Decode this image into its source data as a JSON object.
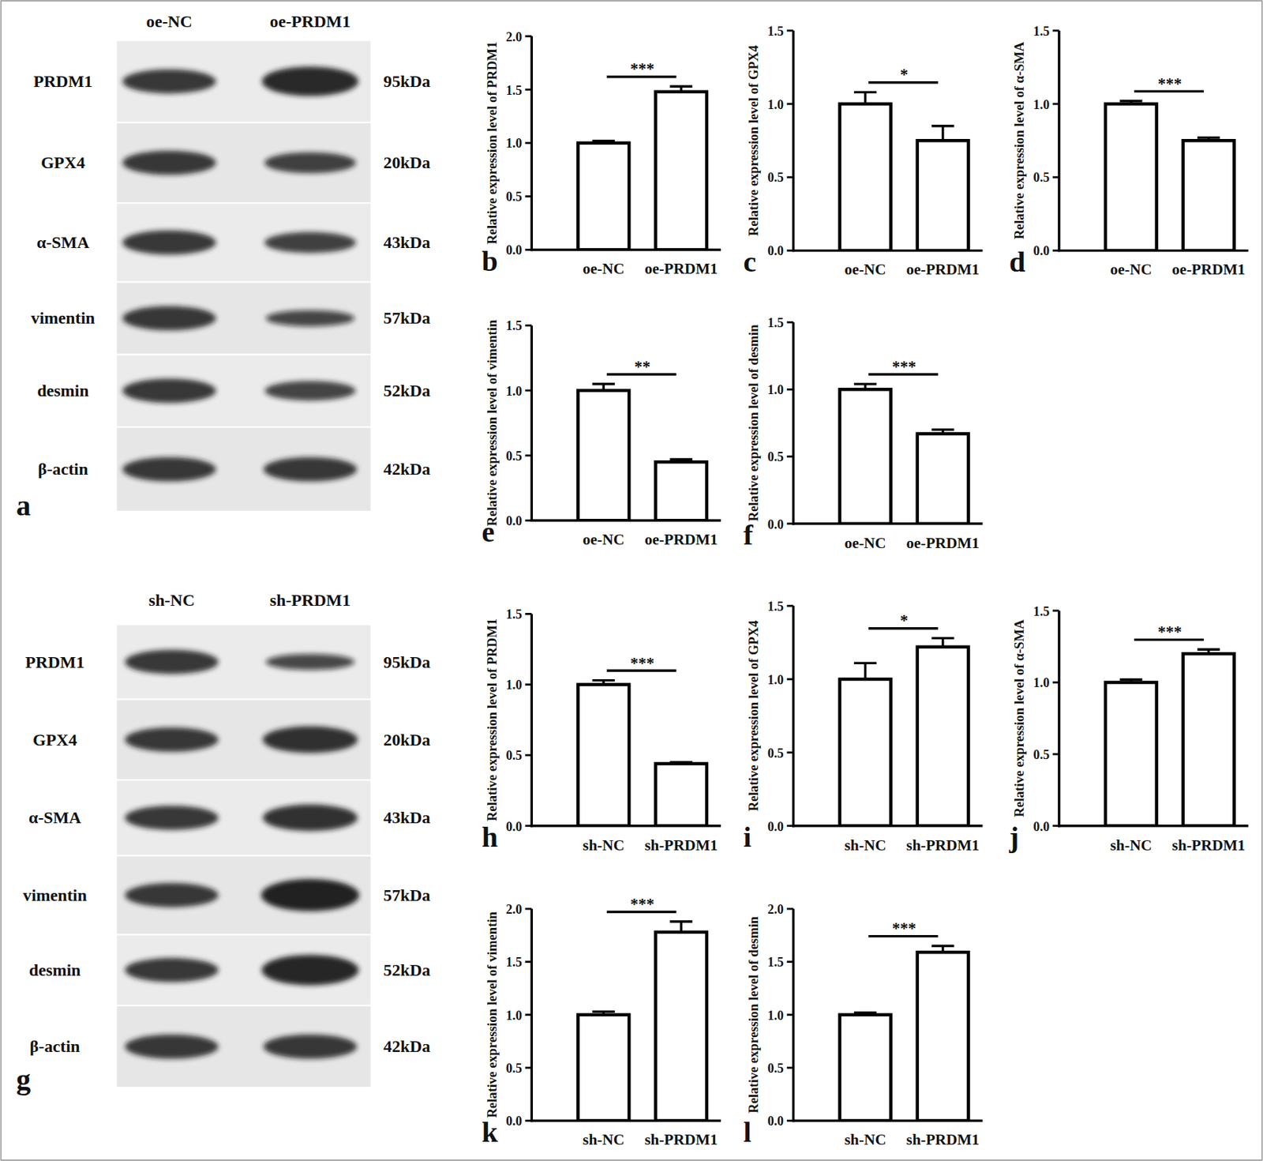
{
  "chart_data": [
    {
      "type": "bar",
      "panel": "b",
      "y_label": "Relative expression level of PRDM1",
      "categories": [
        "oe-NC",
        "oe-PRDM1"
      ],
      "values": [
        1.0,
        1.48
      ],
      "errors": [
        0.02,
        0.05
      ],
      "color": "#000000",
      "ylim": [
        0,
        2
      ],
      "yticks": [
        {
          "value": 0,
          "label": "0.0"
        },
        {
          "value": 0.5,
          "label": "0.5"
        },
        {
          "value": 1,
          "label": "1.0"
        },
        {
          "value": 1.5,
          "label": "1.5"
        },
        {
          "value": 2,
          "label": "2.0"
        }
      ],
      "annotations": [
        "***"
      ]
    },
    {
      "type": "bar",
      "panel": "c",
      "y_label": "Relative expression level of GPX4",
      "categories": [
        "oe-NC",
        "oe-PRDM1"
      ],
      "values": [
        1.0,
        0.75
      ],
      "errors": [
        0.08,
        0.1
      ],
      "color": "#000000",
      "ylim": [
        0,
        1.5
      ],
      "yticks": [
        {
          "value": 0,
          "label": "0.0"
        },
        {
          "value": 0.5,
          "label": "0.5"
        },
        {
          "value": 1,
          "label": "1.0"
        },
        {
          "value": 1.5,
          "label": "1.5"
        }
      ],
      "annotations": [
        "*"
      ]
    },
    {
      "type": "bar",
      "panel": "d",
      "y_label": "Relative expression level of α-SMA",
      "categories": [
        "oe-NC",
        "oe-PRDM1"
      ],
      "values": [
        1.0,
        0.75
      ],
      "errors": [
        0.02,
        0.02
      ],
      "color": "#000000",
      "ylim": [
        0,
        1.5
      ],
      "yticks": [
        {
          "value": 0,
          "label": "0.0"
        },
        {
          "value": 0.5,
          "label": "0.5"
        },
        {
          "value": 1,
          "label": "1.0"
        },
        {
          "value": 1.5,
          "label": "1.5"
        }
      ],
      "annotations": [
        "***"
      ]
    },
    {
      "type": "bar",
      "panel": "e",
      "y_label": "Relative expression level of vimentin",
      "categories": [
        "oe-NC",
        "oe-PRDM1"
      ],
      "values": [
        1.0,
        0.45
      ],
      "errors": [
        0.05,
        0.02
      ],
      "color": "#000000",
      "ylim": [
        0,
        1.5
      ],
      "yticks": [
        {
          "value": 0,
          "label": "0.0"
        },
        {
          "value": 0.5,
          "label": "0.5"
        },
        {
          "value": 1,
          "label": "1.0"
        },
        {
          "value": 1.5,
          "label": "1.5"
        }
      ],
      "annotations": [
        "**"
      ]
    },
    {
      "type": "bar",
      "panel": "f",
      "y_label": "Relative expression level of desmin",
      "categories": [
        "oe-NC",
        "oe-PRDM1"
      ],
      "values": [
        1.0,
        0.67
      ],
      "errors": [
        0.04,
        0.03
      ],
      "color": "#000000",
      "ylim": [
        0,
        1.5
      ],
      "yticks": [
        {
          "value": 0,
          "label": "0.0"
        },
        {
          "value": 0.5,
          "label": "0.5"
        },
        {
          "value": 1,
          "label": "1.0"
        },
        {
          "value": 1.5,
          "label": "1.5"
        }
      ],
      "annotations": [
        "***"
      ]
    },
    {
      "type": "bar",
      "panel": "h",
      "y_label": "Relative expression level of PRDM1",
      "categories": [
        "sh-NC",
        "sh-PRDM1"
      ],
      "values": [
        1.0,
        0.44
      ],
      "errors": [
        0.03,
        0.01
      ],
      "color": "#000000",
      "ylim": [
        0,
        1.5
      ],
      "yticks": [
        {
          "value": 0,
          "label": "0.0"
        },
        {
          "value": 0.5,
          "label": "0.5"
        },
        {
          "value": 1,
          "label": "1.0"
        },
        {
          "value": 1.5,
          "label": "1.5"
        }
      ],
      "annotations": [
        "***"
      ]
    },
    {
      "type": "bar",
      "panel": "i",
      "y_label": "Relative expression level of GPX4",
      "categories": [
        "sh-NC",
        "sh-PRDM1"
      ],
      "values": [
        1.0,
        1.22
      ],
      "errors": [
        0.11,
        0.06
      ],
      "color": "#000000",
      "ylim": [
        0,
        1.5
      ],
      "yticks": [
        {
          "value": 0,
          "label": "0.0"
        },
        {
          "value": 0.5,
          "label": "0.5"
        },
        {
          "value": 1,
          "label": "1.0"
        },
        {
          "value": 1.5,
          "label": "1.5"
        }
      ],
      "annotations": [
        "*"
      ]
    },
    {
      "type": "bar",
      "panel": "j",
      "y_label": "Relative expression level of α-SMA",
      "categories": [
        "sh-NC",
        "sh-PRDM1"
      ],
      "values": [
        1.0,
        1.2
      ],
      "errors": [
        0.02,
        0.03
      ],
      "color": "#000000",
      "ylim": [
        0,
        1.5
      ],
      "yticks": [
        {
          "value": 0,
          "label": "0.0"
        },
        {
          "value": 0.5,
          "label": "0.5"
        },
        {
          "value": 1,
          "label": "1.0"
        },
        {
          "value": 1.5,
          "label": "1.5"
        }
      ],
      "annotations": [
        "***"
      ]
    },
    {
      "type": "bar",
      "panel": "k",
      "y_label": "Relative expression level of vimentin",
      "categories": [
        "sh-NC",
        "sh-PRDM1"
      ],
      "values": [
        1.0,
        1.78
      ],
      "errors": [
        0.03,
        0.1
      ],
      "color": "#000000",
      "ylim": [
        0,
        2
      ],
      "yticks": [
        {
          "value": 0,
          "label": "0.0"
        },
        {
          "value": 0.5,
          "label": "0.5"
        },
        {
          "value": 1,
          "label": "1.0"
        },
        {
          "value": 1.5,
          "label": "1.5"
        },
        {
          "value": 2,
          "label": "2.0"
        }
      ],
      "annotations": [
        "***"
      ]
    },
    {
      "type": "bar",
      "panel": "l",
      "y_label": "Relative expression level of desmin",
      "categories": [
        "sh-NC",
        "sh-PRDM1"
      ],
      "values": [
        1.0,
        1.59
      ],
      "errors": [
        0.02,
        0.06
      ],
      "color": "#000000",
      "ylim": [
        0,
        2
      ],
      "yticks": [
        {
          "value": 0,
          "label": "0.0"
        },
        {
          "value": 0.5,
          "label": "0.5"
        },
        {
          "value": 1,
          "label": "1.0"
        },
        {
          "value": 1.5,
          "label": "1.5"
        },
        {
          "value": 2,
          "label": "2.0"
        }
      ],
      "annotations": [
        "***"
      ]
    }
  ],
  "blots": [
    {
      "panel": "a",
      "lanes": [
        "oe-NC",
        "oe-PRDM1"
      ],
      "rows": [
        {
          "protein": "PRDM1",
          "size": "95kDa"
        },
        {
          "protein": "GPX4",
          "size": "20kDa"
        },
        {
          "protein": "α-SMA",
          "size": "43kDa"
        },
        {
          "protein": "vimentin",
          "size": "57kDa"
        },
        {
          "protein": "desmin",
          "size": "52kDa"
        },
        {
          "protein": "β-actin",
          "size": "42kDa"
        }
      ]
    },
    {
      "panel": "g",
      "lanes": [
        "sh-NC",
        "sh-PRDM1"
      ],
      "rows": [
        {
          "protein": "PRDM1",
          "size": "95kDa"
        },
        {
          "protein": "GPX4",
          "size": "20kDa"
        },
        {
          "protein": "α-SMA",
          "size": "43kDa"
        },
        {
          "protein": "vimentin",
          "size": "57kDa"
        },
        {
          "protein": "desmin",
          "size": "52kDa"
        },
        {
          "protein": "β-actin",
          "size": "42kDa"
        }
      ]
    }
  ]
}
